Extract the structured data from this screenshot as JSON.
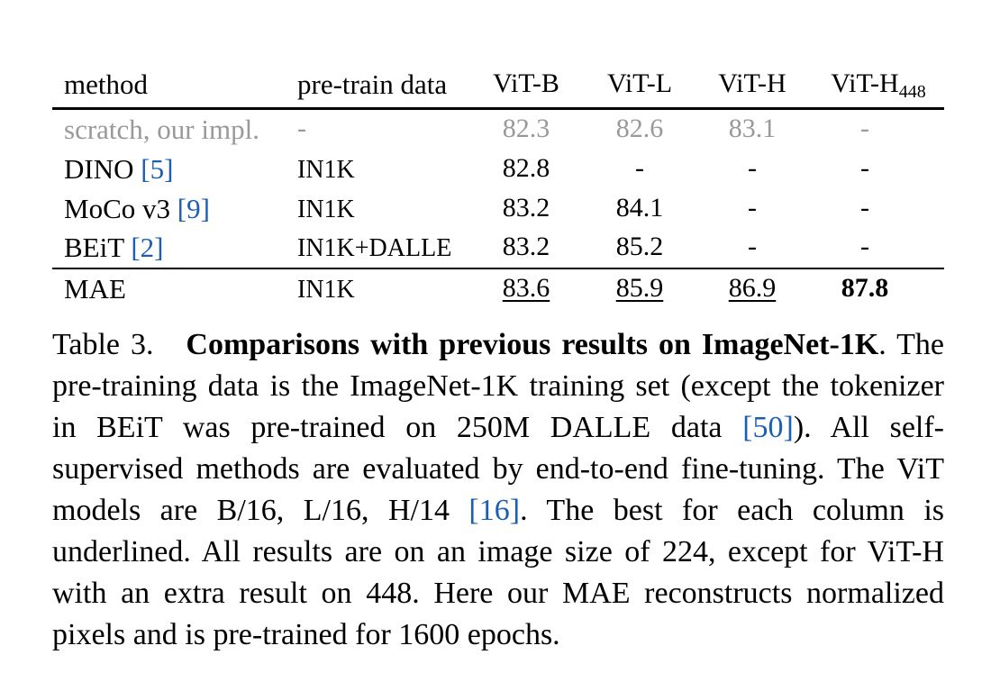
{
  "table": {
    "headers": {
      "method": "method",
      "pretrain": "pre-train data",
      "vitb": "ViT-B",
      "vitl": "ViT-L",
      "vith": "ViT-H",
      "vith448_base": "ViT-H",
      "vith448_sub": "448"
    },
    "rows": [
      {
        "method": "scratch, our impl.",
        "cite": "",
        "pretrain": "-",
        "vitb": "82.3",
        "vitl": "82.6",
        "vith": "83.1",
        "vith448": "-"
      },
      {
        "method": "DINO ",
        "cite": "[5]",
        "pretrain": "IN1K",
        "vitb": "82.8",
        "vitl": "-",
        "vith": "-",
        "vith448": "-"
      },
      {
        "method": "MoCo v3 ",
        "cite": "[9]",
        "pretrain": "IN1K",
        "vitb": "83.2",
        "vitl": "84.1",
        "vith": "-",
        "vith448": "-"
      },
      {
        "method": "BEiT ",
        "cite": "[2]",
        "pretrain": "IN1K+DALLE",
        "vitb": "83.2",
        "vitl": "85.2",
        "vith": "-",
        "vith448": "-"
      },
      {
        "method": "MAE",
        "cite": "",
        "pretrain": "IN1K",
        "vitb": "83.6",
        "vitl": "85.9",
        "vith": "86.9",
        "vith448": "87.8"
      }
    ]
  },
  "caption": {
    "label": "Table 3.",
    "title": "Comparisons with previous results on ImageNet-1K",
    "t1": ". The pre-training data is the ImageNet-1K training set (except the tokenizer in BEiT was pre-trained on 250M DALLE data ",
    "c1": "[50]",
    "t2": "). All self-supervised methods are evaluated by end-to-end fine-tuning. The ViT models are B/16, L/16, H/14 ",
    "c2": "[16]",
    "t3": ". The best for each column is underlined. All results are on an image size of 224, except for ViT-H with an extra result on 448. Here our MAE reconstructs normalized pixels and is pre-trained for 1600 epochs."
  },
  "colors": {
    "gray_row": "#999999",
    "citation": "#1a5fb4"
  }
}
